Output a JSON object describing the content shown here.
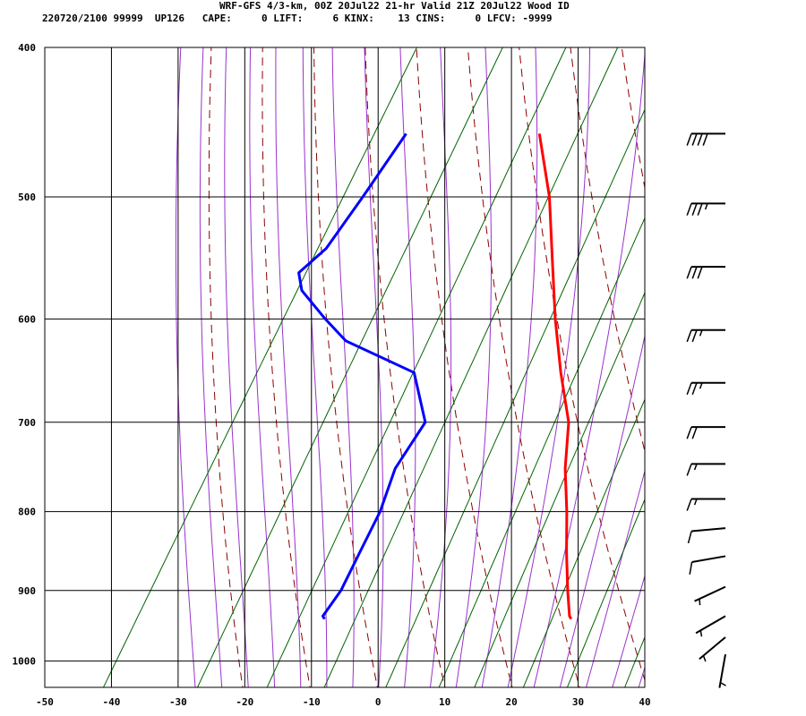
{
  "header": {
    "title": "WRF-GFS 4/3-km, 00Z 20Jul22 21-hr Valid 21Z 20Jul22 Wood ID",
    "info": "220720/2100 99999  UP126   CAPE:     0 LIFT:     6 KINX:    13 CINS:     0 LFCV: -9999"
  },
  "colors": {
    "temperature": "#ff0000",
    "dewpoint": "#0000ff",
    "isotherm_grid": "#000000",
    "dry_adiabat": "#8b0000",
    "moist_adiabat": "#9932cc",
    "mixing_ratio": "#006400",
    "wind_barb": "#000000"
  },
  "chart_data": {
    "type": "line",
    "title": "WRF-GFS 4/3-km, 00Z 20Jul22 21-hr Valid 21Z 20Jul22 Wood ID",
    "xlabel": "",
    "ylabel": "",
    "x_axis": {
      "range": [
        -50,
        40
      ],
      "ticks": [
        "-50",
        "-40",
        "-30",
        "-20",
        "-10",
        "0",
        "10",
        "20",
        "30",
        "40"
      ]
    },
    "y_axis": {
      "scale": "log",
      "range": [
        1040,
        400
      ],
      "ticks": [
        "400",
        "500",
        "600",
        "700",
        "800",
        "900",
        "1000"
      ]
    },
    "skew": true,
    "grid": true,
    "series": [
      {
        "kind": "temperature",
        "points": [
          {
            "p": 939,
            "t": 23
          },
          {
            "p": 935,
            "t": 22.5
          },
          {
            "p": 900,
            "t": 20
          },
          {
            "p": 850,
            "t": 16.5
          },
          {
            "p": 800,
            "t": 13
          },
          {
            "p": 750,
            "t": 9
          },
          {
            "p": 700,
            "t": 5.5
          },
          {
            "p": 650,
            "t": 0
          },
          {
            "p": 600,
            "t": -5.5
          },
          {
            "p": 550,
            "t": -11
          },
          {
            "p": 500,
            "t": -17
          },
          {
            "p": 455,
            "t": -24
          }
        ]
      },
      {
        "kind": "dewpoint",
        "points": [
          {
            "p": 939,
            "t": -14
          },
          {
            "p": 935,
            "t": -14.5
          },
          {
            "p": 900,
            "t": -14
          },
          {
            "p": 850,
            "t": -14.5
          },
          {
            "p": 800,
            "t": -15
          },
          {
            "p": 750,
            "t": -16.5
          },
          {
            "p": 700,
            "t": -16
          },
          {
            "p": 650,
            "t": -22
          },
          {
            "p": 620,
            "t": -35
          },
          {
            "p": 600,
            "t": -40
          },
          {
            "p": 575,
            "t": -46
          },
          {
            "p": 560,
            "t": -48
          },
          {
            "p": 540,
            "t": -46
          },
          {
            "p": 500,
            "t": -45
          },
          {
            "p": 455,
            "t": -44
          }
        ]
      }
    ],
    "wind_barbs": [
      {
        "p": 455,
        "dir": 270,
        "kt": 40
      },
      {
        "p": 505,
        "dir": 270,
        "kt": 35
      },
      {
        "p": 555,
        "dir": 270,
        "kt": 30
      },
      {
        "p": 610,
        "dir": 270,
        "kt": 25
      },
      {
        "p": 660,
        "dir": 270,
        "kt": 25
      },
      {
        "p": 705,
        "dir": 270,
        "kt": 20
      },
      {
        "p": 745,
        "dir": 270,
        "kt": 15
      },
      {
        "p": 785,
        "dir": 270,
        "kt": 15
      },
      {
        "p": 820,
        "dir": 265,
        "kt": 10
      },
      {
        "p": 855,
        "dir": 260,
        "kt": 10
      },
      {
        "p": 895,
        "dir": 245,
        "kt": 5
      },
      {
        "p": 935,
        "dir": 240,
        "kt": 5
      },
      {
        "p": 965,
        "dir": 230,
        "kt": 5
      },
      {
        "p": 990,
        "dir": 190,
        "kt": 5
      }
    ]
  }
}
